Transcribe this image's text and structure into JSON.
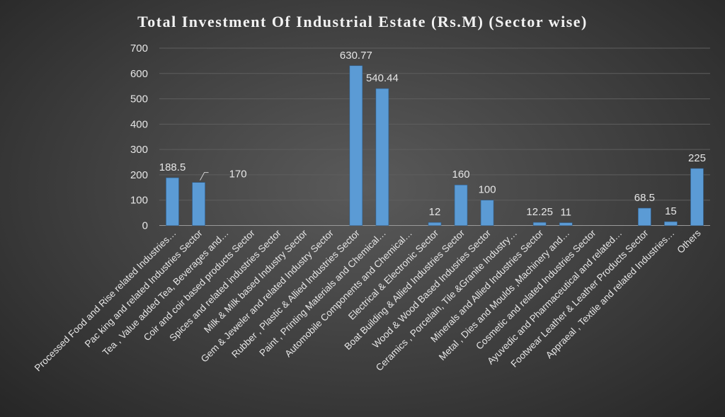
{
  "chart_data": {
    "type": "bar",
    "title": "Total Investment Of Industrial Estate (Rs.M) (Sector wise)",
    "xlabel": "",
    "ylabel": "",
    "ylim": [
      0,
      700
    ],
    "yticks": [
      0,
      100,
      200,
      300,
      400,
      500,
      600,
      700
    ],
    "grid": true,
    "legend": "none",
    "bar_color": "#5b9bd5",
    "categories": [
      "Processed  Food and Rise related Industries…",
      "Pac king and  related Industries Sector",
      "Tea , Value added Tea, Beverages and…",
      "Coir and coir based products Sector",
      "Spices and related industries Sector",
      "Milk & Milk based Industry Sector",
      "Gem & Jeweler and related Industry Sector",
      "Rubber , Plastic & Allied Industries Sector",
      "Paint , Printing Materials and Chemical…",
      "Automobile Components and Chemical…",
      "Electrical & Electronic Sector",
      "Boat Building & Allied Industries Sector",
      "Wood & Wood Based Indusries Sector",
      "Ceramics , Porcelain, Tile &Granite Industry…",
      "Minerals and Allied Industries Sector",
      "Metal , Dies and Moulds ,Machinery and…",
      "Cosmetic and related Industries Sector",
      "Ayuvedic and Pharmaceutical and related…",
      "Footwear Leather & Leather Products Sector",
      "Appraeal , Textile and related Industries…",
      "Others"
    ],
    "values": [
      188.5,
      170,
      0,
      0,
      0,
      0,
      0,
      630.77,
      540.44,
      0,
      12,
      160,
      100,
      0,
      12.25,
      11,
      0,
      0,
      68.5,
      15,
      225
    ],
    "data_labels": [
      "188.5",
      "170",
      "",
      "",
      "",
      "",
      "",
      "630.77",
      "540.44",
      "",
      "12",
      "160",
      "100",
      "",
      "12.25",
      "11",
      "",
      "",
      "68.5",
      "15",
      "225"
    ]
  }
}
